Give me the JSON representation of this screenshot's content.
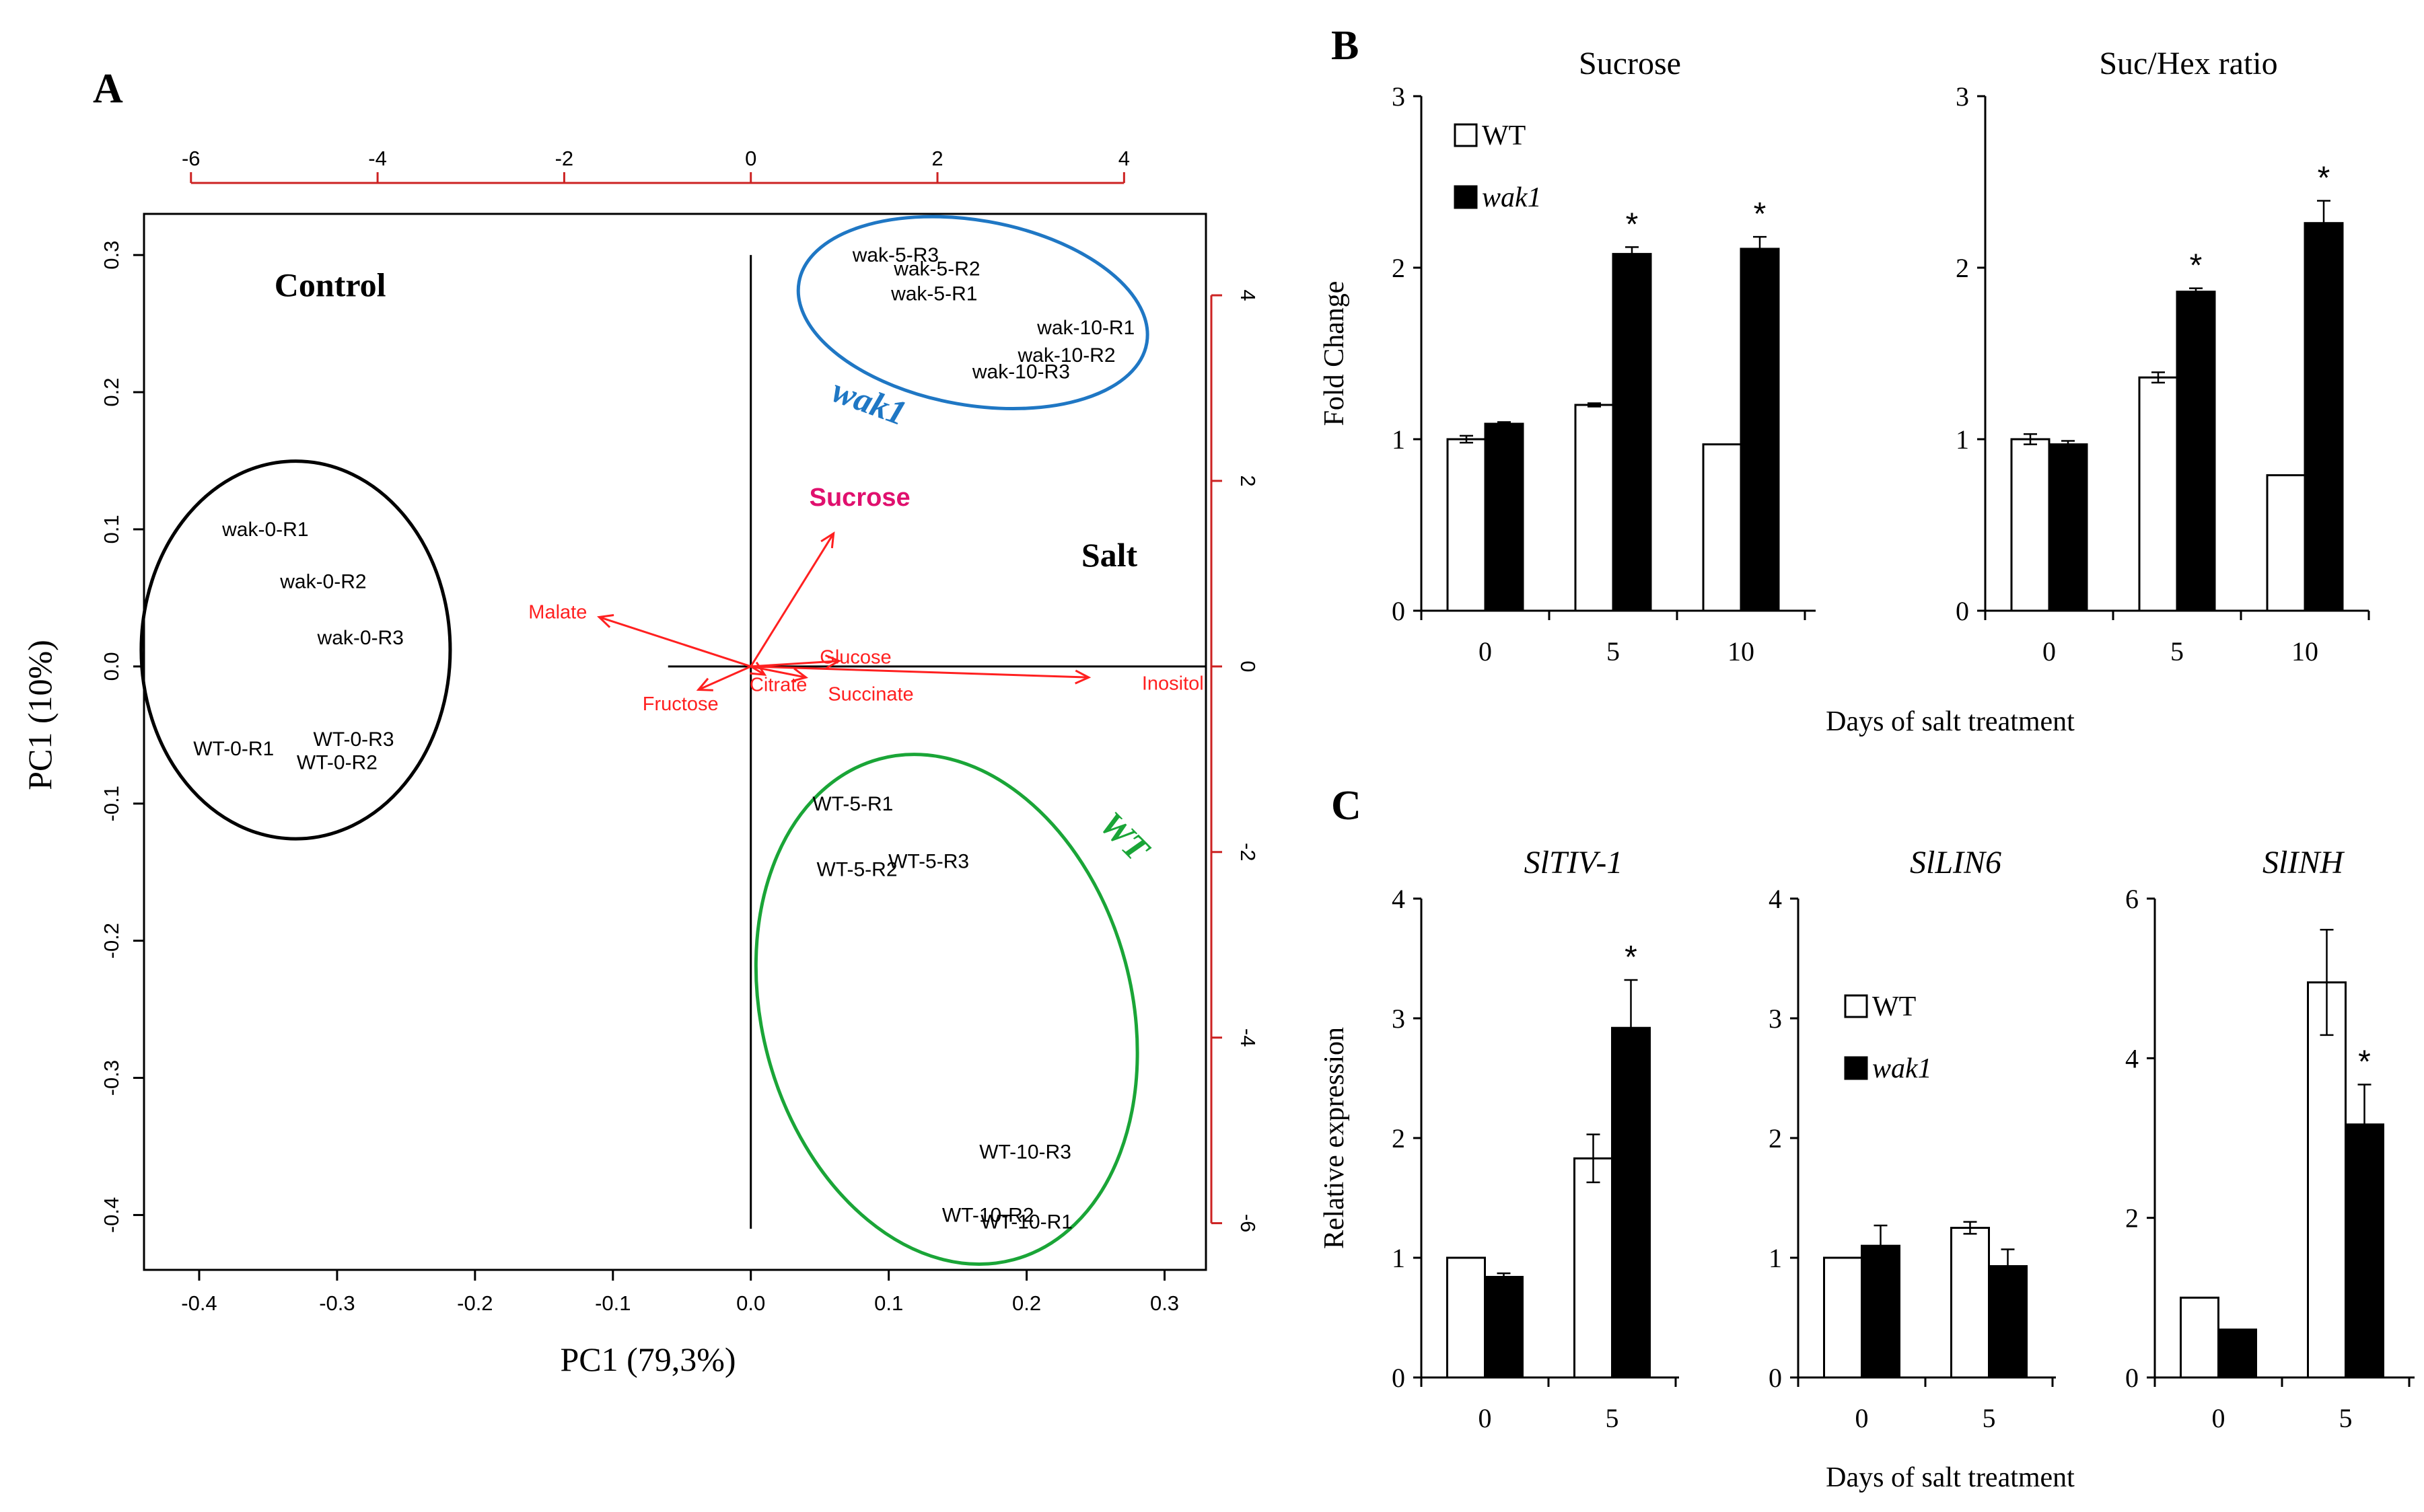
{
  "panel_labels": {
    "a": "A",
    "b": "B",
    "c": "C"
  },
  "colors": {
    "axis_black": "#000000",
    "vector_red": "#ff2020",
    "secondary_axis_red": "#cc2222",
    "wak1_blue": "#1f77c4",
    "wt_green": "#1aa537",
    "sucrose_magenta": "#e0106e",
    "bar_wt": "#ffffff",
    "bar_wak1": "#000000"
  },
  "chart_data": [
    {
      "id": "A",
      "type": "scatter",
      "subtype": "pca-biplot",
      "xlabel": "PC1 (79,3%)",
      "ylabel": "PC1 (10%)",
      "xlim": [
        -0.44,
        0.33
      ],
      "ylim": [
        -0.44,
        0.33
      ],
      "x_ticks": [
        "-0.4",
        "-0.3",
        "-0.2",
        "-0.1",
        "0.0",
        "0.1",
        "0.2",
        "0.3"
      ],
      "x_tick_values": [
        -0.4,
        -0.3,
        -0.2,
        -0.1,
        0.0,
        0.1,
        0.2,
        0.3
      ],
      "y_ticks": [
        "0.3",
        "0.2",
        "0.1",
        "0.0",
        "-0.1",
        "-0.2",
        "-0.3",
        "-0.4"
      ],
      "y_tick_values": [
        0.3,
        0.2,
        0.1,
        0.0,
        -0.1,
        -0.2,
        -0.3,
        -0.4
      ],
      "top_ticks": [
        "-6",
        "-4",
        "-2",
        "0",
        "2",
        "4"
      ],
      "top_tick_values": [
        -6,
        -4,
        -2,
        0,
        2,
        4
      ],
      "right_ticks": [
        "4",
        "2",
        "0",
        "-2",
        "-4",
        "-6"
      ],
      "right_tick_values": [
        4,
        2,
        0,
        -2,
        -4,
        -6
      ],
      "secondary_scale": 14.78,
      "region_labels": [
        {
          "text": "Control",
          "x": -0.305,
          "y": 0.27
        },
        {
          "text": "Salt",
          "x": 0.26,
          "y": 0.073
        }
      ],
      "samples": [
        {
          "label": "wak-5-R3",
          "x": 0.105,
          "y": 0.3
        },
        {
          "label": "wak-5-R2",
          "x": 0.135,
          "y": 0.29
        },
        {
          "label": "wak-5-R1",
          "x": 0.133,
          "y": 0.272
        },
        {
          "label": "wak-10-R1",
          "x": 0.243,
          "y": 0.247
        },
        {
          "label": "wak-10-R2",
          "x": 0.229,
          "y": 0.227
        },
        {
          "label": "wak-10-R3",
          "x": 0.196,
          "y": 0.215
        },
        {
          "label": "wak-0-R1",
          "x": -0.352,
          "y": 0.1
        },
        {
          "label": "wak-0-R2",
          "x": -0.31,
          "y": 0.062
        },
        {
          "label": "wak-0-R3",
          "x": -0.283,
          "y": 0.021
        },
        {
          "label": "WT-0-R1",
          "x": -0.375,
          "y": -0.06
        },
        {
          "label": "WT-0-R3",
          "x": -0.288,
          "y": -0.053
        },
        {
          "label": "WT-0-R2",
          "x": -0.3,
          "y": -0.07
        },
        {
          "label": "WT-5-R1",
          "x": 0.074,
          "y": -0.1
        },
        {
          "label": "WT-5-R3",
          "x": 0.129,
          "y": -0.142
        },
        {
          "label": "WT-5-R2",
          "x": 0.077,
          "y": -0.148
        },
        {
          "label": "WT-10-R3",
          "x": 0.199,
          "y": -0.354
        },
        {
          "label": "WT-10-R2",
          "x": 0.172,
          "y": -0.4
        },
        {
          "label": "WT-10-R1",
          "x": 0.2,
          "y": -0.405
        }
      ],
      "vectors": [
        {
          "label": "Sucrose",
          "x": 0.06,
          "y": 0.097,
          "label_x": 0.079,
          "label_y": 0.122,
          "highlight": true
        },
        {
          "label": "Malate",
          "x": -0.11,
          "y": 0.036,
          "label_x": -0.14,
          "label_y": 0.04
        },
        {
          "label": "Fructose",
          "x": -0.038,
          "y": -0.017,
          "label_x": -0.051,
          "label_y": -0.027
        },
        {
          "label": "Citrate",
          "x": 0.01,
          "y": -0.006,
          "label_x": 0.02,
          "label_y": -0.013
        },
        {
          "label": "Glucose",
          "x": 0.064,
          "y": 0.004,
          "label_x": 0.076,
          "label_y": 0.007
        },
        {
          "label": "Succinate",
          "x": 0.04,
          "y": -0.008,
          "label_x": 0.087,
          "label_y": -0.02
        },
        {
          "label": "Inositol",
          "x": 0.245,
          "y": -0.008,
          "label_x": 0.306,
          "label_y": -0.012
        }
      ],
      "ellipses": [
        {
          "name": "wak1",
          "color": "blue",
          "label": "wak1",
          "cx": 0.161,
          "cy": 0.258,
          "rx": 0.128,
          "ry": 0.067,
          "rotate": 10,
          "label_x": 0.083,
          "label_y": 0.185,
          "label_rotate": 20
        },
        {
          "name": "control",
          "color": "black",
          "cx": -0.33,
          "cy": 0.012,
          "rx": 0.112,
          "ry": 0.137,
          "rotate": 0
        },
        {
          "name": "WT",
          "color": "green",
          "label": "WT",
          "cx": 0.142,
          "cy": -0.25,
          "rx": 0.134,
          "ry": 0.188,
          "rotate": -15,
          "label_x": 0.265,
          "label_y": -0.13,
          "label_rotate": 45
        }
      ]
    },
    {
      "id": "B1",
      "type": "bar",
      "title": "Sucrose",
      "ylabel": "Fold Change",
      "ylim": [
        0,
        3
      ],
      "yticks": [
        0,
        1,
        2,
        3
      ],
      "categories": [
        "0",
        "5",
        "10"
      ],
      "series": [
        {
          "name": "WT",
          "values": [
            1.0,
            1.2,
            0.97
          ],
          "errors": [
            0.02,
            0.01,
            0.0
          ]
        },
        {
          "name": "wak1",
          "values": [
            1.09,
            2.08,
            2.11
          ],
          "errors": [
            0.01,
            0.04,
            0.07
          ]
        }
      ],
      "significance": [
        "",
        "*",
        "*"
      ],
      "legend": {
        "position": "top-left",
        "entries": [
          "WT",
          "wak1"
        ]
      }
    },
    {
      "id": "B2",
      "type": "bar",
      "title": "Suc/Hex ratio",
      "ylim": [
        0,
        3
      ],
      "yticks": [
        0,
        1,
        2,
        3
      ],
      "categories": [
        "0",
        "5",
        "10"
      ],
      "series": [
        {
          "name": "WT",
          "values": [
            1.0,
            1.36,
            0.79
          ],
          "errors": [
            0.03,
            0.03,
            0.0
          ]
        },
        {
          "name": "wak1",
          "values": [
            0.97,
            1.86,
            2.26
          ],
          "errors": [
            0.02,
            0.02,
            0.13
          ]
        }
      ],
      "significance": [
        "",
        "*",
        "*"
      ],
      "xlabel": "Days of salt treatment"
    },
    {
      "id": "C1",
      "type": "bar",
      "title": "SlTIV-1",
      "ylabel": "Relative expression",
      "ylim": [
        0,
        4
      ],
      "yticks": [
        0,
        1,
        2,
        3,
        4
      ],
      "categories": [
        "0",
        "5"
      ],
      "series": [
        {
          "name": "WT",
          "values": [
            1.0,
            1.83
          ],
          "errors": [
            0.0,
            0.2
          ]
        },
        {
          "name": "wak1",
          "values": [
            0.84,
            2.92
          ],
          "errors": [
            0.03,
            0.4
          ]
        }
      ],
      "significance": [
        "",
        "*"
      ]
    },
    {
      "id": "C2",
      "type": "bar",
      "title": "SlLIN6",
      "ylim": [
        0,
        4
      ],
      "yticks": [
        0,
        1,
        2,
        3,
        4
      ],
      "categories": [
        "0",
        "5"
      ],
      "series": [
        {
          "name": "WT",
          "values": [
            1.0,
            1.25
          ],
          "errors": [
            0.0,
            0.05
          ]
        },
        {
          "name": "wak1",
          "values": [
            1.1,
            0.93
          ],
          "errors": [
            0.17,
            0.14
          ]
        }
      ],
      "significance": [
        "",
        ""
      ],
      "legend": {
        "position": "middle-left",
        "entries": [
          "WT",
          "wak1"
        ]
      },
      "xlabel": "Days of salt treatment"
    },
    {
      "id": "C3",
      "type": "bar",
      "title": "SlINH",
      "ylim": [
        0,
        6
      ],
      "yticks": [
        0,
        2,
        4,
        6
      ],
      "categories": [
        "0",
        "5"
      ],
      "series": [
        {
          "name": "WT",
          "values": [
            1.0,
            4.95
          ],
          "errors": [
            0.0,
            0.66
          ]
        },
        {
          "name": "wak1",
          "values": [
            0.6,
            3.17
          ],
          "errors": [
            0.0,
            0.5
          ]
        }
      ],
      "significance": [
        "",
        "*"
      ]
    }
  ]
}
